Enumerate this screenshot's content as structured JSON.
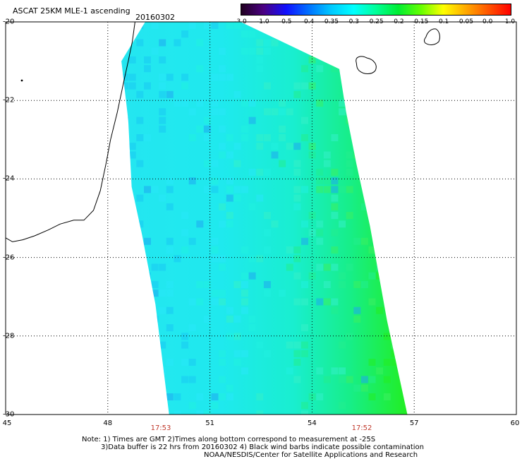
{
  "header": {
    "title": "ASCAT 25KM MLE-1 ascending",
    "date": "20160302"
  },
  "colorbar": {
    "labels": [
      "-3.0",
      "-1.0",
      "-0.5",
      "-0.4",
      "-0.35",
      "-0.3",
      "-0.25",
      "-0.2",
      "-0.15",
      "-0.1",
      "-0.05",
      "0.0",
      "1.0"
    ],
    "colors": [
      "#200020",
      "#4b0082",
      "#1010ff",
      "#0070ff",
      "#00c8ff",
      "#00ffff",
      "#00ff99",
      "#00ee33",
      "#66ff00",
      "#ffff00",
      "#ffaa00",
      "#ff5500",
      "#ff0000"
    ]
  },
  "map": {
    "lat_labels": [
      "-20",
      "-22",
      "-24",
      "-26",
      "-28",
      "-30"
    ],
    "lon_labels": [
      "45",
      "48",
      "51",
      "54",
      "57",
      "60"
    ],
    "lat_range": [
      -30,
      -20
    ],
    "lon_range": [
      45,
      60
    ],
    "grid": "dotted"
  },
  "times": [
    "17:53",
    "17:52"
  ],
  "notes": {
    "line1": "Note: 1) Times are GMT 2)Times along bottom correspond to measurement at -25S",
    "line2": "3)Data buffer is 22 hrs from 20160302 4) Black wind barbs indicate possible contamination",
    "line3": "NOAA/NESDIS/Center for Satellite Applications and Research"
  }
}
